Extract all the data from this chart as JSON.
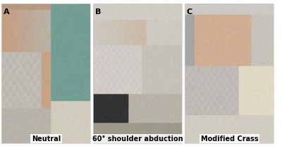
{
  "figure_width": 4.0,
  "figure_height": 2.31,
  "dpi": 100,
  "panels": [
    {
      "label": "A",
      "caption": "Neutral",
      "col": 0
    },
    {
      "label": "B",
      "caption": "60° shoulder abduction",
      "col": 1
    },
    {
      "label": "C",
      "caption": "Modified Crass",
      "col": 2
    }
  ],
  "background_color": "#ffffff",
  "border_color": "#cccccc",
  "label_fontsize": 8,
  "caption_fontsize": 7,
  "label_color": "#000000",
  "caption_color": "#000000"
}
